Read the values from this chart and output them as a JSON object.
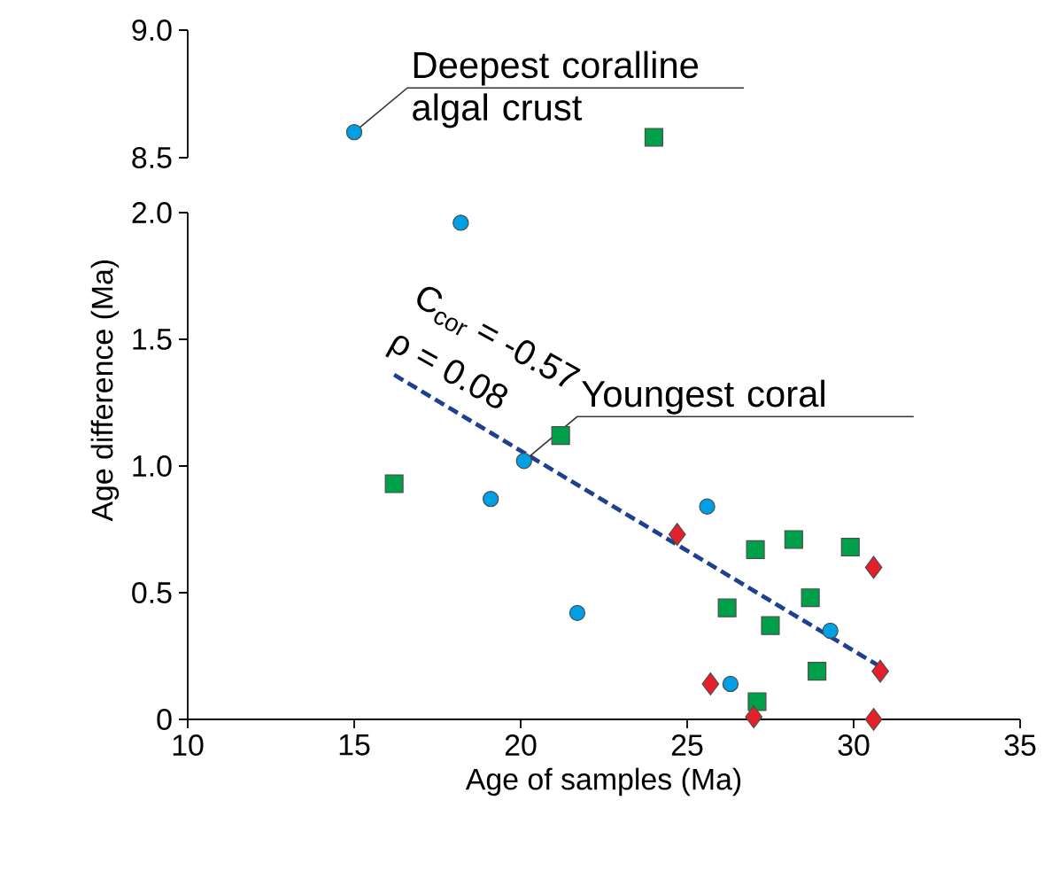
{
  "chart_data": [
    {
      "type": "scatter",
      "xlim": [
        10,
        35
      ],
      "ylim": [
        8.5,
        9.0
      ],
      "yticks": [
        {
          "value": 8.5,
          "label": "8.5"
        },
        {
          "value": 9.0,
          "label": "9.0"
        }
      ],
      "tick_labels": "y",
      "series": [
        {
          "color": "#00a0e6",
          "marker": "circle",
          "x": [
            15.0
          ],
          "values": [
            8.6
          ]
        },
        {
          "color": "#00a04b",
          "marker": "square",
          "x": [
            24.0
          ],
          "values": [
            8.58
          ]
        }
      ],
      "annotations": [
        {
          "text": "Deepest coralline algal crust",
          "x": 15.0,
          "y": 8.6
        }
      ]
    },
    {
      "type": "scatter",
      "xlabel": "Age of samples (Ma)",
      "ylabel": "Age difference (Ma)",
      "xlim": [
        10,
        35
      ],
      "xticks": [
        10,
        15,
        20,
        25,
        30,
        35
      ],
      "ylim": [
        0,
        2.0
      ],
      "yticks": [
        0,
        0.5,
        {
          "value": 1.0,
          "label": "1.0"
        },
        1.5,
        {
          "value": 2.0,
          "label": "2.0"
        }
      ],
      "series": [
        {
          "color": "#00a0e6",
          "marker": "circle",
          "x": [
            18.2,
            20.1,
            19.1,
            21.7,
            25.6,
            29.3,
            26.3
          ],
          "values": [
            1.96,
            1.02,
            0.87,
            0.42,
            0.84,
            0.35,
            0.14
          ]
        },
        {
          "color": "#00a04b",
          "marker": "square",
          "x": [
            16.2,
            21.2,
            27.05,
            28.2,
            29.9,
            28.7,
            26.2,
            27.5,
            28.9,
            27.1
          ],
          "values": [
            0.93,
            1.12,
            0.67,
            0.71,
            0.68,
            0.48,
            0.44,
            0.37,
            0.19,
            0.07
          ]
        },
        {
          "color": "#e6202a",
          "marker": "diamond",
          "x": [
            24.7,
            30.6,
            30.8,
            25.7,
            27.0,
            30.6
          ],
          "values": [
            0.73,
            0.6,
            0.19,
            0.14,
            0.01,
            0.0
          ]
        },
        {
          "type": "line",
          "color": "#1f3f8f",
          "line_style": "dashed",
          "x": [
            16.2,
            30.9
          ],
          "values": [
            1.36,
            0.2
          ]
        }
      ],
      "annotations": [
        {
          "text": "Youngest coral",
          "x": 20.1,
          "y": 1.02
        },
        "C$_{cor}$ = -0.57",
        "ρ = 0.08"
      ]
    }
  ]
}
